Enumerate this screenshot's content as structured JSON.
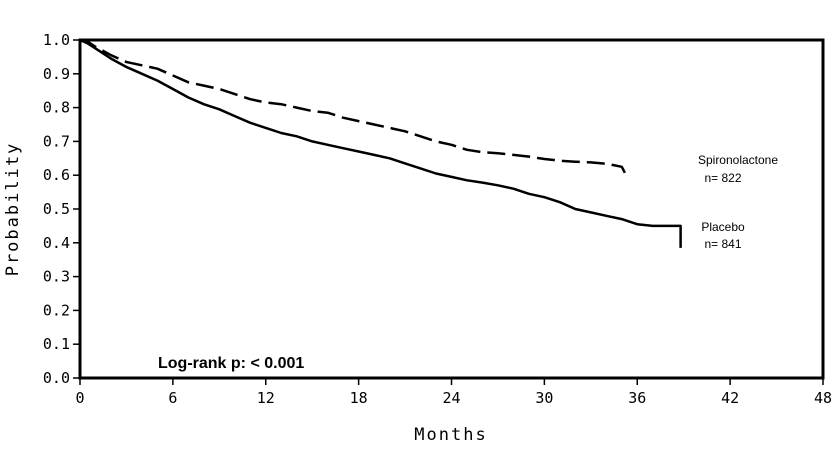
{
  "chart_data": {
    "type": "line",
    "title": "",
    "xlabel": "Months",
    "ylabel": "Probability",
    "xlim": [
      0,
      48
    ],
    "ylim": [
      0,
      1
    ],
    "x_ticks": [
      0,
      6,
      12,
      18,
      24,
      30,
      36,
      42,
      48
    ],
    "y_ticks": [
      "0.0",
      "0.1",
      "0.2",
      "0.3",
      "0.4",
      "0.5",
      "0.6",
      "0.7",
      "0.8",
      "0.9",
      "1.0"
    ],
    "grid": false,
    "legend": "none",
    "annotations": [
      {
        "text": "Log-rank p: < 0.001"
      }
    ],
    "series": [
      {
        "name": "Spironolactone",
        "label_line1": "Spironolactone",
        "label_line2": "n= 822",
        "style": "dashed",
        "color": "#000000",
        "points": [
          [
            0,
            1.0
          ],
          [
            0.5,
            0.995
          ],
          [
            1,
            0.98
          ],
          [
            2,
            0.955
          ],
          [
            3,
            0.935
          ],
          [
            4,
            0.925
          ],
          [
            5,
            0.915
          ],
          [
            6,
            0.895
          ],
          [
            7,
            0.875
          ],
          [
            8,
            0.865
          ],
          [
            9,
            0.855
          ],
          [
            10,
            0.84
          ],
          [
            11,
            0.825
          ],
          [
            12,
            0.815
          ],
          [
            13,
            0.81
          ],
          [
            14,
            0.8
          ],
          [
            15,
            0.79
          ],
          [
            16,
            0.785
          ],
          [
            17,
            0.77
          ],
          [
            18,
            0.76
          ],
          [
            19,
            0.75
          ],
          [
            20,
            0.74
          ],
          [
            21,
            0.73
          ],
          [
            22,
            0.715
          ],
          [
            23,
            0.7
          ],
          [
            24,
            0.69
          ],
          [
            25,
            0.675
          ],
          [
            26,
            0.668
          ],
          [
            27,
            0.665
          ],
          [
            28,
            0.66
          ],
          [
            29,
            0.655
          ],
          [
            30,
            0.648
          ],
          [
            31,
            0.643
          ],
          [
            32,
            0.64
          ],
          [
            33,
            0.638
          ],
          [
            34,
            0.634
          ],
          [
            35,
            0.625
          ],
          [
            35.2,
            0.607
          ]
        ]
      },
      {
        "name": "Placebo",
        "label_line1": "Placebo",
        "label_line2": "n= 841",
        "style": "solid",
        "color": "#000000",
        "points": [
          [
            0,
            1.0
          ],
          [
            0.5,
            0.99
          ],
          [
            1,
            0.975
          ],
          [
            2,
            0.945
          ],
          [
            3,
            0.92
          ],
          [
            4,
            0.9
          ],
          [
            5,
            0.88
          ],
          [
            6,
            0.855
          ],
          [
            7,
            0.83
          ],
          [
            8,
            0.81
          ],
          [
            9,
            0.795
          ],
          [
            10,
            0.775
          ],
          [
            11,
            0.755
          ],
          [
            12,
            0.74
          ],
          [
            13,
            0.725
          ],
          [
            14,
            0.715
          ],
          [
            15,
            0.7
          ],
          [
            16,
            0.69
          ],
          [
            17,
            0.68
          ],
          [
            18,
            0.67
          ],
          [
            19,
            0.66
          ],
          [
            20,
            0.65
          ],
          [
            21,
            0.635
          ],
          [
            22,
            0.62
          ],
          [
            23,
            0.605
          ],
          [
            24,
            0.595
          ],
          [
            25,
            0.585
          ],
          [
            26,
            0.578
          ],
          [
            27,
            0.57
          ],
          [
            28,
            0.56
          ],
          [
            29,
            0.545
          ],
          [
            30,
            0.535
          ],
          [
            31,
            0.52
          ],
          [
            32,
            0.5
          ],
          [
            33,
            0.49
          ],
          [
            34,
            0.48
          ],
          [
            35,
            0.47
          ],
          [
            36,
            0.455
          ],
          [
            37,
            0.45
          ],
          [
            38,
            0.45
          ],
          [
            38.8,
            0.45
          ],
          [
            38.8,
            0.385
          ]
        ]
      }
    ]
  }
}
